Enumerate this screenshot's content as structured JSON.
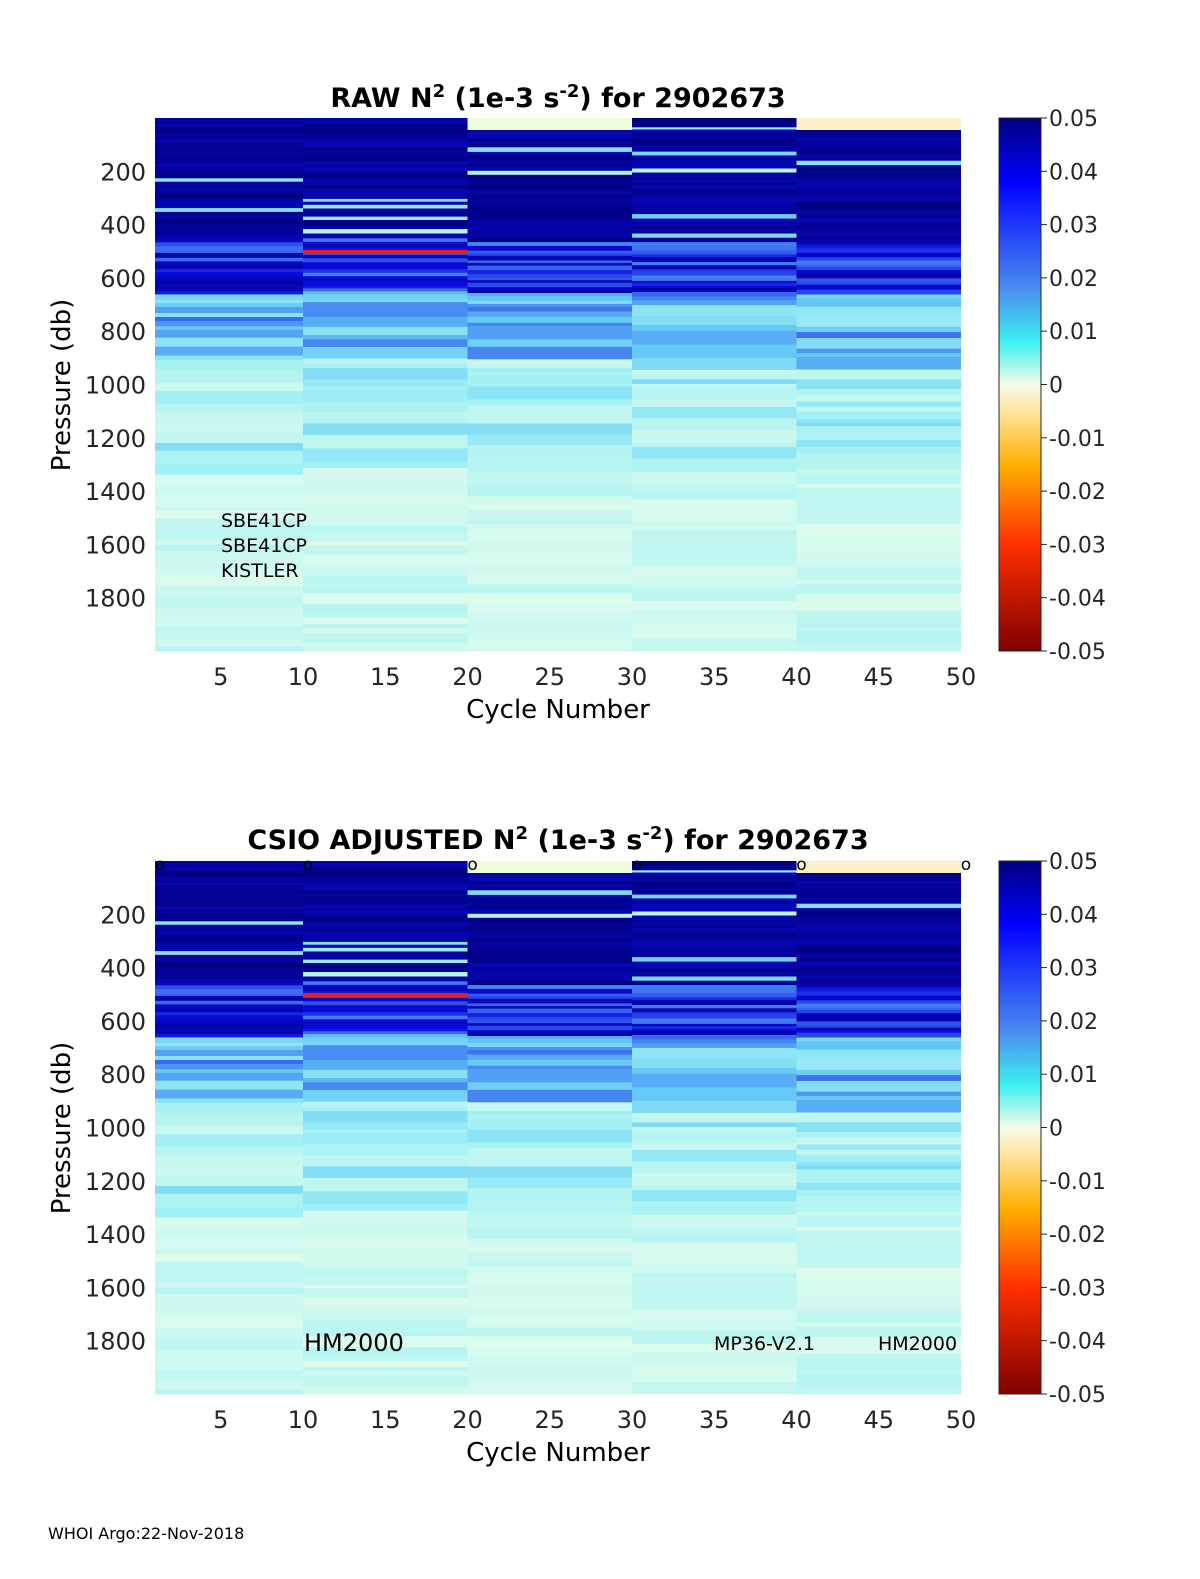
{
  "chart_data": [
    {
      "type": "heatmap",
      "title_pre": "RAW N",
      "title_unit_pre": " (1e-3 s",
      "title_unit_exp": "-2",
      "title_post": ") for 2902673",
      "xlabel": "Cycle Number",
      "ylabel": "Pressure (db)",
      "xlim": [
        1,
        50
      ],
      "ylim": [
        0,
        2000
      ],
      "x_ticks": [
        5,
        10,
        15,
        20,
        25,
        30,
        35,
        40,
        45,
        50
      ],
      "y_ticks": [
        200,
        400,
        600,
        800,
        1000,
        1200,
        1400,
        1600,
        1800
      ],
      "colorbar_ticks": [
        0.05,
        0.04,
        0.03,
        0.02,
        0.01,
        0,
        -0.01,
        -0.02,
        -0.03,
        -0.04,
        -0.05
      ],
      "clim": [
        -0.05,
        0.05
      ],
      "annotations": [
        "SBE41CP",
        "SBE41CP",
        "KISTLER"
      ],
      "cycle_groups": [
        1,
        10,
        20,
        30,
        40,
        50
      ]
    },
    {
      "type": "heatmap",
      "title_pre": "CSIO  ADJUSTED N",
      "title_unit_pre": " (1e-3 s",
      "title_unit_exp": "-2",
      "title_post": ") for 2902673",
      "xlabel": "Cycle Number",
      "ylabel": "Pressure (db)",
      "xlim": [
        1,
        50
      ],
      "ylim": [
        0,
        2000
      ],
      "x_ticks": [
        5,
        10,
        15,
        20,
        25,
        30,
        35,
        40,
        45,
        50
      ],
      "y_ticks": [
        200,
        400,
        600,
        800,
        1000,
        1200,
        1400,
        1600,
        1800
      ],
      "colorbar_ticks": [
        0.05,
        0.04,
        0.03,
        0.02,
        0.01,
        0,
        -0.01,
        -0.02,
        -0.03,
        -0.04,
        -0.05
      ],
      "clim": [
        -0.05,
        0.05
      ],
      "annotations": [
        "HM2000",
        "MP36-V2.1",
        "HM2000"
      ],
      "qc_markers": [
        {
          "cycle": 1,
          "label": "o"
        },
        {
          "cycle": 10,
          "label": "o"
        },
        {
          "cycle": 20,
          "label": "o"
        },
        {
          "cycle": 30,
          "label": "o"
        },
        {
          "cycle": 40,
          "label": "o"
        },
        {
          "cycle": 50,
          "label": "o"
        }
      ],
      "cycle_groups": [
        1,
        10,
        20,
        30,
        40,
        50
      ]
    }
  ],
  "title_exponent": "2",
  "footer": "WHOI Argo:22-Nov-2018"
}
